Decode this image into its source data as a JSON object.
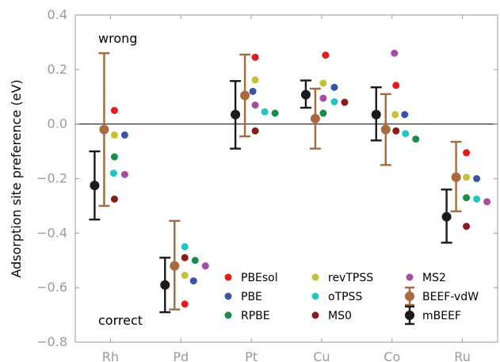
{
  "chart_data": {
    "type": "scatter",
    "title": "",
    "xlabel": "",
    "ylabel": "Adsorption site preference (eV)",
    "categories": [
      "Rh",
      "Pd",
      "Pt",
      "Cu",
      "Co",
      "Ru"
    ],
    "ylim": [
      -0.8,
      0.4
    ],
    "yticks": [
      "0.4",
      "0.2",
      "0.0",
      "−0.2",
      "−0.4",
      "−0.6",
      "−0.8"
    ],
    "ytick_values": [
      0.4,
      0.2,
      0.0,
      -0.2,
      -0.4,
      -0.6,
      -0.8
    ],
    "zero_line": true,
    "grid": false,
    "legend_placement": "lower-right",
    "annotations": {
      "top": "wrong",
      "bottom": "correct"
    },
    "errorbar_series": [
      {
        "name": "mBEEF",
        "color": "#1a1a1a",
        "values": [
          -0.225,
          -0.59,
          0.035,
          0.108,
          0.035,
          -0.34
        ],
        "lower": [
          -0.35,
          -0.69,
          -0.09,
          0.06,
          -0.06,
          -0.435
        ],
        "upper": [
          -0.1,
          -0.49,
          0.158,
          0.16,
          0.135,
          -0.24
        ]
      },
      {
        "name": "BEEF-vdW",
        "color": "#a86a3c",
        "values": [
          -0.02,
          -0.52,
          0.105,
          0.02,
          -0.02,
          -0.195
        ],
        "lower": [
          -0.3,
          -0.68,
          -0.045,
          -0.09,
          -0.15,
          -0.32
        ],
        "upper": [
          0.26,
          -0.355,
          0.255,
          0.13,
          0.11,
          -0.065
        ]
      }
    ],
    "series": [
      {
        "name": "PBEsol",
        "color": "#e41a1c",
        "values": [
          0.05,
          -0.66,
          0.245,
          0.253,
          0.142,
          -0.105
        ]
      },
      {
        "name": "PBE",
        "color": "#3a53a4",
        "values": [
          -0.04,
          -0.575,
          0.12,
          0.135,
          0.035,
          -0.2
        ]
      },
      {
        "name": "RPBE",
        "color": "#1b8c4e",
        "values": [
          -0.12,
          -0.5,
          0.04,
          0.04,
          -0.055,
          -0.27
        ]
      },
      {
        "name": "revTPSS",
        "color": "#c2c236",
        "values": [
          -0.04,
          -0.555,
          0.162,
          0.15,
          0.035,
          -0.195
        ]
      },
      {
        "name": "oTPSS",
        "color": "#22c4c4",
        "values": [
          -0.18,
          -0.45,
          0.045,
          0.082,
          -0.035,
          -0.275
        ]
      },
      {
        "name": "MS0",
        "color": "#8b1a1a",
        "values": [
          -0.275,
          -0.49,
          -0.025,
          0.08,
          -0.025,
          -0.375
        ]
      },
      {
        "name": "MS2",
        "color": "#a64ca6",
        "values": [
          -0.185,
          -0.52,
          0.07,
          0.095,
          0.26,
          -0.285
        ]
      }
    ]
  }
}
